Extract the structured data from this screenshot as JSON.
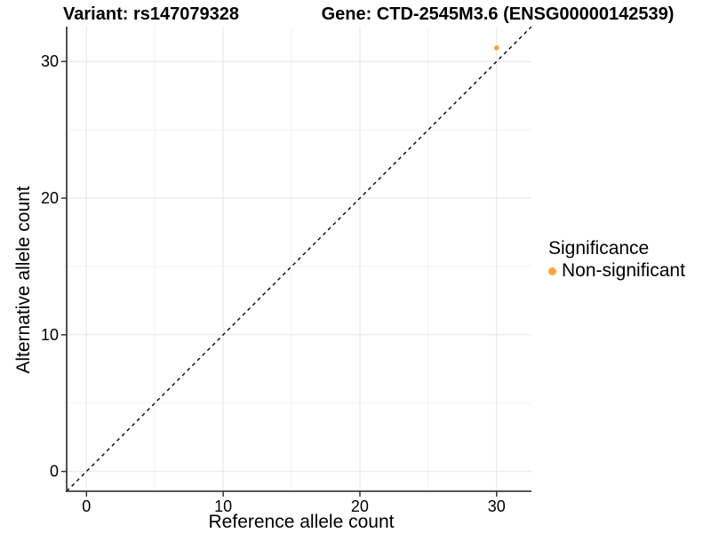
{
  "chart_data": {
    "type": "scatter",
    "titles": {
      "left": "Variant: rs147079328",
      "right": "Gene: CTD-2545M3.6 (ENSG00000142539)"
    },
    "xlabel": "Reference allele count",
    "ylabel": "Alternative allele count",
    "xlim": [
      -1.45,
      32.55
    ],
    "ylim": [
      -1.45,
      32.55
    ],
    "xticks": [
      0,
      10,
      20,
      30
    ],
    "yticks": [
      0,
      10,
      20,
      30
    ],
    "minor_gridlines": [
      5,
      15,
      25
    ],
    "grid": "on",
    "points": [
      {
        "x": 30,
        "y": 31,
        "series": "Non-significant"
      }
    ],
    "identity_line": {
      "style": "dashed",
      "slope": 1,
      "intercept": 0,
      "color": "#000000"
    },
    "legend": {
      "title": "Significance",
      "position": "right",
      "items": [
        {
          "label": "Non-significant",
          "color": "#F8A53C"
        }
      ]
    },
    "colors": {
      "axis_line": "#3f3f3f",
      "tick_mark": "#333333",
      "grid_major": "#e4e4e4",
      "grid_minor": "#f1f1f1",
      "text": "#000000",
      "background": "#ffffff"
    }
  }
}
